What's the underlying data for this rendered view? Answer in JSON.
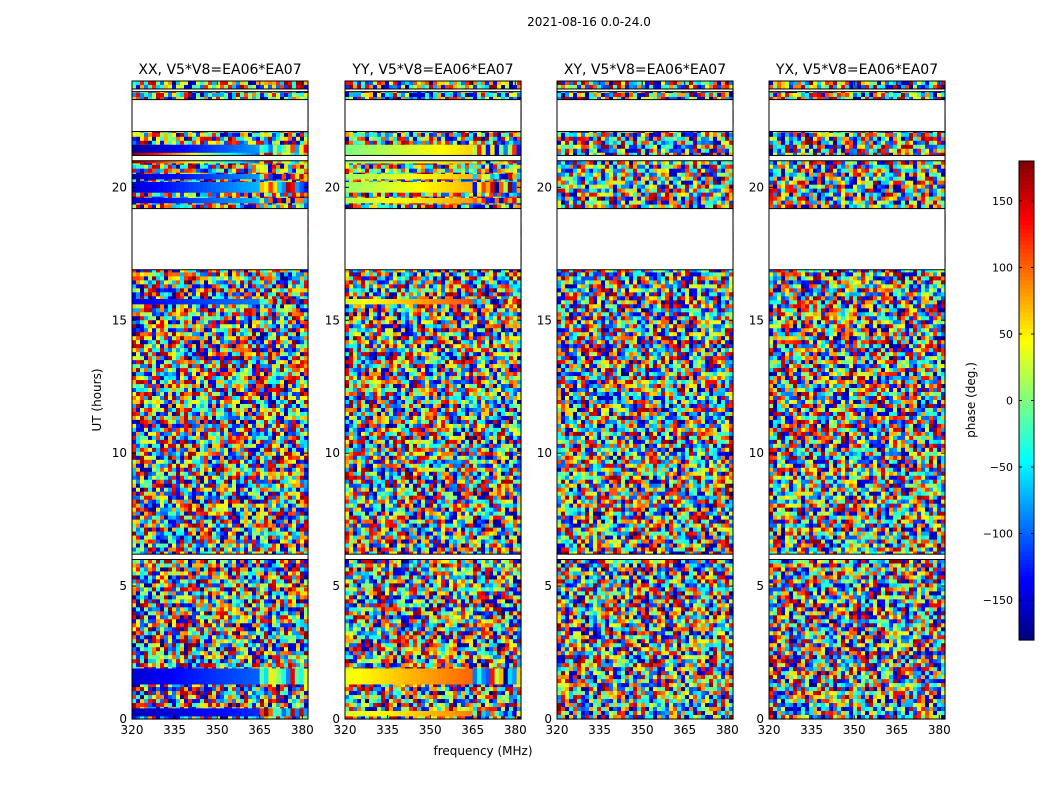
{
  "figure": {
    "suptitle": "2021-08-16 0.0-24.0",
    "xlabel": "frequency (MHz)",
    "ylabel": "UT (hours)"
  },
  "chart_data": {
    "type": "heatmap",
    "x_range": [
      320,
      382
    ],
    "y_range": [
      0,
      24
    ],
    "x_ticks": [
      320,
      335,
      350,
      365,
      380
    ],
    "y_ticks": [
      0,
      5,
      10,
      15,
      20
    ],
    "panels": [
      {
        "title": "XX, V5*V8=EA06*EA07",
        "pol": "XX"
      },
      {
        "title": "YY, V5*V8=EA06*EA07",
        "pol": "YY"
      },
      {
        "title": "XY, V5*V8=EA06*EA07",
        "pol": "XY"
      },
      {
        "title": "YX, V5*V8=EA06*EA07",
        "pol": "YX"
      }
    ],
    "flagged_ut_ranges": [
      [
        16.9,
        19.2
      ],
      [
        21.0,
        21.2
      ],
      [
        22.1,
        23.3
      ],
      [
        6.0,
        6.2
      ],
      [
        23.6,
        23.7
      ]
    ],
    "coherent_phase_bands": [
      {
        "pol": "XX",
        "ut": [
          1.3,
          1.9
        ],
        "phase_start": -150,
        "phase_end": -100,
        "wrap_from_mhz": 364
      },
      {
        "pol": "XX",
        "ut": [
          0.1,
          0.4
        ],
        "phase_start": -160,
        "phase_end": -120,
        "wrap_from_mhz": 364
      },
      {
        "pol": "XX",
        "ut": [
          15.6,
          15.8
        ],
        "phase_start": -140,
        "phase_end": -90,
        "wrap_from_mhz": 364
      },
      {
        "pol": "XX",
        "ut": [
          19.4,
          19.6
        ],
        "phase_start": -150,
        "phase_end": -70,
        "wrap_from_mhz": 364
      },
      {
        "pol": "XX",
        "ut": [
          19.8,
          20.2
        ],
        "phase_start": -150,
        "phase_end": -70,
        "wrap_from_mhz": 364
      },
      {
        "pol": "XX",
        "ut": [
          20.3,
          20.5
        ],
        "phase_start": -160,
        "phase_end": -80,
        "wrap_from_mhz": 364
      },
      {
        "pol": "XX",
        "ut": [
          20.9,
          21.4
        ],
        "phase_start": 175,
        "phase_end": -100,
        "wrap_from_mhz": 364
      },
      {
        "pol": "XX",
        "ut": [
          21.3,
          21.6
        ],
        "phase_start": -170,
        "phase_end": -80,
        "wrap_from_mhz": 364
      },
      {
        "pol": "YY",
        "ut": [
          1.3,
          1.9
        ],
        "phase_start": 40,
        "phase_end": 100,
        "wrap_from_mhz": 364
      },
      {
        "pol": "YY",
        "ut": [
          0.1,
          0.3
        ],
        "phase_start": 30,
        "phase_end": 90,
        "wrap_from_mhz": 364
      },
      {
        "pol": "YY",
        "ut": [
          15.6,
          15.8
        ],
        "phase_start": 30,
        "phase_end": 110,
        "wrap_from_mhz": 364
      },
      {
        "pol": "YY",
        "ut": [
          19.4,
          19.6
        ],
        "phase_start": 20,
        "phase_end": 80,
        "wrap_from_mhz": 364
      },
      {
        "pol": "YY",
        "ut": [
          19.8,
          20.2
        ],
        "phase_start": 10,
        "phase_end": 70,
        "wrap_from_mhz": 364
      },
      {
        "pol": "YY",
        "ut": [
          20.3,
          20.5
        ],
        "phase_start": 10,
        "phase_end": 70,
        "wrap_from_mhz": 364
      },
      {
        "pol": "YY",
        "ut": [
          20.9,
          21.2
        ],
        "phase_start": 5,
        "phase_end": 70,
        "wrap_from_mhz": 364
      },
      {
        "pol": "YY",
        "ut": [
          21.2,
          21.6
        ],
        "phase_start": 0,
        "phase_end": 60,
        "wrap_from_mhz": 364
      }
    ],
    "colorbar": {
      "label": "phase (deg.)",
      "range": [
        -180,
        180
      ],
      "ticks": [
        -150,
        -100,
        -50,
        0,
        50,
        100,
        150
      ],
      "tick_labels": [
        "−150",
        "−100",
        "−50",
        "0",
        "50",
        "100",
        "150"
      ],
      "colormap": "jet"
    },
    "flag_color": "#ffffff",
    "flag_border_color": "#000000"
  }
}
